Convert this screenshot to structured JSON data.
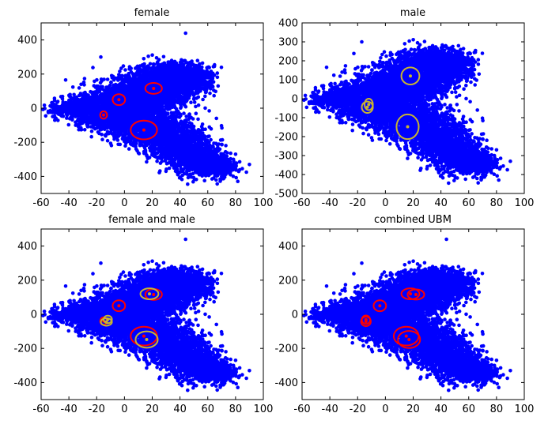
{
  "chart_data": [
    {
      "type": "scatter",
      "title": "female",
      "xlim": [
        -60,
        100
      ],
      "ylim": [
        -500,
        500
      ],
      "xticks": [
        -60,
        -40,
        -20,
        0,
        20,
        40,
        60,
        80,
        100
      ],
      "yticks": [
        -400,
        -200,
        0,
        200,
        400
      ],
      "point_color": "#0000ff",
      "ellipses": [
        {
          "color": "#ff0000",
          "center": [
            21,
            116
          ],
          "rx": 6,
          "ry": 32
        },
        {
          "color": "#ff0000",
          "center": [
            -4,
            50
          ],
          "rx": 4.5,
          "ry": 32
        },
        {
          "color": "#ff0000",
          "center": [
            -15,
            -40
          ],
          "rx": 2.5,
          "ry": 22
        },
        {
          "color": "#ff0000",
          "center": [
            14,
            -128
          ],
          "rx": 9.5,
          "ry": 55
        }
      ]
    },
    {
      "type": "scatter",
      "title": "male",
      "xlim": [
        -60,
        100
      ],
      "ylim": [
        -500,
        400
      ],
      "xticks": [
        -60,
        -40,
        -20,
        0,
        20,
        40,
        60,
        80,
        100
      ],
      "yticks": [
        -500,
        -400,
        -300,
        -200,
        -100,
        0,
        100,
        200,
        300,
        400
      ],
      "point_color": "#0000ff",
      "ellipses": [
        {
          "color": "#c8b432",
          "center": [
            18,
            120
          ],
          "rx": 6.5,
          "ry": 45
        },
        {
          "color": "#c8b432",
          "center": [
            -12,
            -30
          ],
          "rx": 3,
          "ry": 30
        },
        {
          "color": "#c8b432",
          "center": [
            -13,
            -45
          ],
          "rx": 4,
          "ry": 30
        },
        {
          "color": "#c8b432",
          "center": [
            16,
            -148
          ],
          "rx": 8,
          "ry": 65
        }
      ]
    },
    {
      "type": "scatter",
      "title": "female and male",
      "xlim": [
        -60,
        100
      ],
      "ylim": [
        -500,
        500
      ],
      "xticks": [
        -60,
        -40,
        -20,
        0,
        20,
        40,
        60,
        80,
        100
      ],
      "yticks": [
        -400,
        -200,
        0,
        200,
        400
      ],
      "point_color": "#0000ff",
      "ellipses": [
        {
          "color": "#ff0000",
          "center": [
            21,
            116
          ],
          "rx": 6,
          "ry": 32
        },
        {
          "color": "#ff0000",
          "center": [
            -4,
            50
          ],
          "rx": 4.5,
          "ry": 32
        },
        {
          "color": "#ff0000",
          "center": [
            -15,
            -40
          ],
          "rx": 2.5,
          "ry": 22
        },
        {
          "color": "#ff0000",
          "center": [
            14,
            -128
          ],
          "rx": 9.5,
          "ry": 55
        },
        {
          "color": "#c8b432",
          "center": [
            18,
            120
          ],
          "rx": 6.5,
          "ry": 32
        },
        {
          "color": "#c8b432",
          "center": [
            -12,
            -30
          ],
          "rx": 3,
          "ry": 22
        },
        {
          "color": "#c8b432",
          "center": [
            -13,
            -45
          ],
          "rx": 4,
          "ry": 22
        },
        {
          "color": "#c8b432",
          "center": [
            16,
            -148
          ],
          "rx": 8,
          "ry": 48
        }
      ]
    },
    {
      "type": "scatter",
      "title": "combined UBM",
      "xlim": [
        -60,
        100
      ],
      "ylim": [
        -500,
        500
      ],
      "xticks": [
        -60,
        -40,
        -20,
        0,
        20,
        40,
        60,
        80,
        100
      ],
      "yticks": [
        -400,
        -200,
        0,
        200,
        400
      ],
      "point_color": "#0000ff",
      "ellipses": [
        {
          "color": "#ff0000",
          "center": [
            18,
            120
          ],
          "rx": 6.5,
          "ry": 32
        },
        {
          "color": "#ff0000",
          "center": [
            22,
            116
          ],
          "rx": 6,
          "ry": 30
        },
        {
          "color": "#ff0000",
          "center": [
            -4,
            50
          ],
          "rx": 4.5,
          "ry": 32
        },
        {
          "color": "#ff0000",
          "center": [
            -14,
            -32
          ],
          "rx": 3,
          "ry": 25
        },
        {
          "color": "#ff0000",
          "center": [
            -14,
            -42
          ],
          "rx": 3.5,
          "ry": 28
        },
        {
          "color": "#ff0000",
          "center": [
            15,
            -128
          ],
          "rx": 9,
          "ry": 55
        },
        {
          "color": "#ff0000",
          "center": [
            17,
            -148
          ],
          "rx": 8,
          "ry": 50
        }
      ]
    }
  ]
}
